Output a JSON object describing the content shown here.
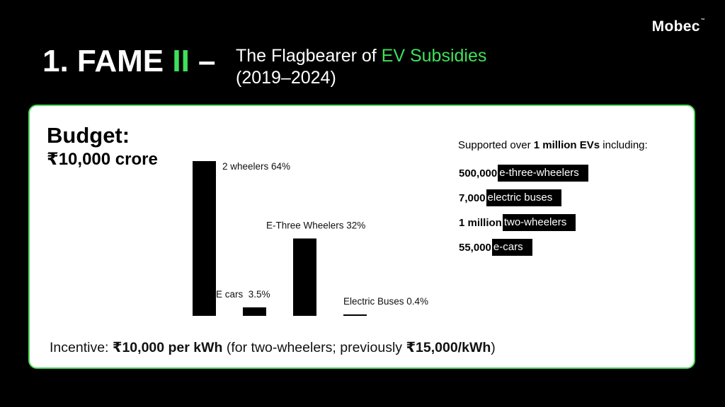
{
  "brand": {
    "name": "Mobec",
    "mark": "™"
  },
  "header": {
    "title_prefix": "1. FAME ",
    "title_accent": "II",
    "title_suffix": " –",
    "subtitle_part1": "The Flagbearer of ",
    "subtitle_accent": "EV Subsidies",
    "subtitle_years": "(2019–2024)"
  },
  "budget": {
    "heading": "Budget:",
    "amount": "₹10,000 crore"
  },
  "chart_data": {
    "type": "bar",
    "categories": [
      "2 wheelers",
      "E cars",
      "E-Three Wheelers",
      "Electric Buses"
    ],
    "values": [
      64,
      3.5,
      32,
      0.4
    ],
    "labels": [
      "2 wheelers 64%",
      "E cars  3.5%",
      "E-Three Wheelers 32%",
      "Electric Buses 0.4%"
    ],
    "unit": "%",
    "title": "",
    "xlabel": "",
    "ylabel": "",
    "grid": false,
    "legend": "none",
    "bar_color": "#000000"
  },
  "support": {
    "intro_prefix": "Supported over ",
    "intro_bold": "1 million EVs",
    "intro_suffix": " including:",
    "items": [
      {
        "count": "500,000",
        "label": "e-three-wheelers"
      },
      {
        "count": "7,000",
        "label": "electric buses"
      },
      {
        "count": "1 million",
        "label": "two-wheelers"
      },
      {
        "count": "55,000",
        "label": "e-cars"
      }
    ]
  },
  "incentive": {
    "prefix": "Incentive: ",
    "amount": "₹10,000 per kWh",
    "middle": " (for two-wheelers; previously ",
    "previous": "₹15,000/kWh",
    "suffix": ")"
  },
  "colors": {
    "accent": "#3ee05a",
    "card_border": "#4fd65c",
    "background": "#000000"
  }
}
